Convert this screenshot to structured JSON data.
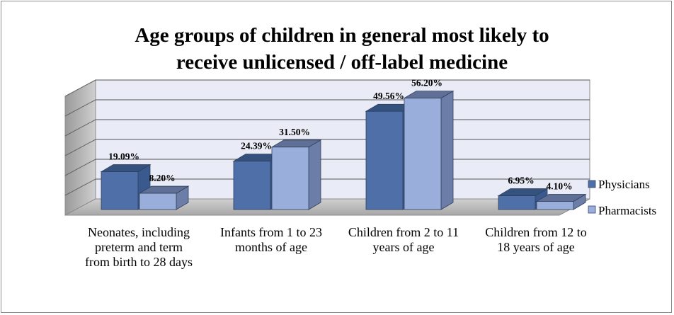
{
  "chart_data": {
    "type": "bar",
    "title_lines": [
      "Age groups of children in general most likely to",
      "receive unlicensed  / off-label medicine"
    ],
    "categories": [
      [
        "Neonates, including",
        "preterm and term",
        "from birth to 28 days"
      ],
      [
        "Infants from 1 to 23",
        "months of age"
      ],
      [
        "Children from 2 to 11",
        "years of age"
      ],
      [
        "Children from 12 to",
        "18 years of age"
      ]
    ],
    "series": [
      {
        "name": "Physicians",
        "values": [
          19.09,
          24.39,
          49.56,
          6.95
        ],
        "labels": [
          "19.09%",
          "24.39%",
          "49.56%",
          "6.95%"
        ],
        "color": "#4f6fa8"
      },
      {
        "name": "Pharmacists",
        "values": [
          8.2,
          31.5,
          56.2,
          4.1
        ],
        "labels": [
          "8.20%",
          "31.50%",
          "56.20%",
          "4.10%"
        ],
        "color": "#9aaedb"
      }
    ],
    "ylim": [
      0,
      60
    ],
    "grid": true,
    "three_d": true,
    "legend_position": "right"
  }
}
